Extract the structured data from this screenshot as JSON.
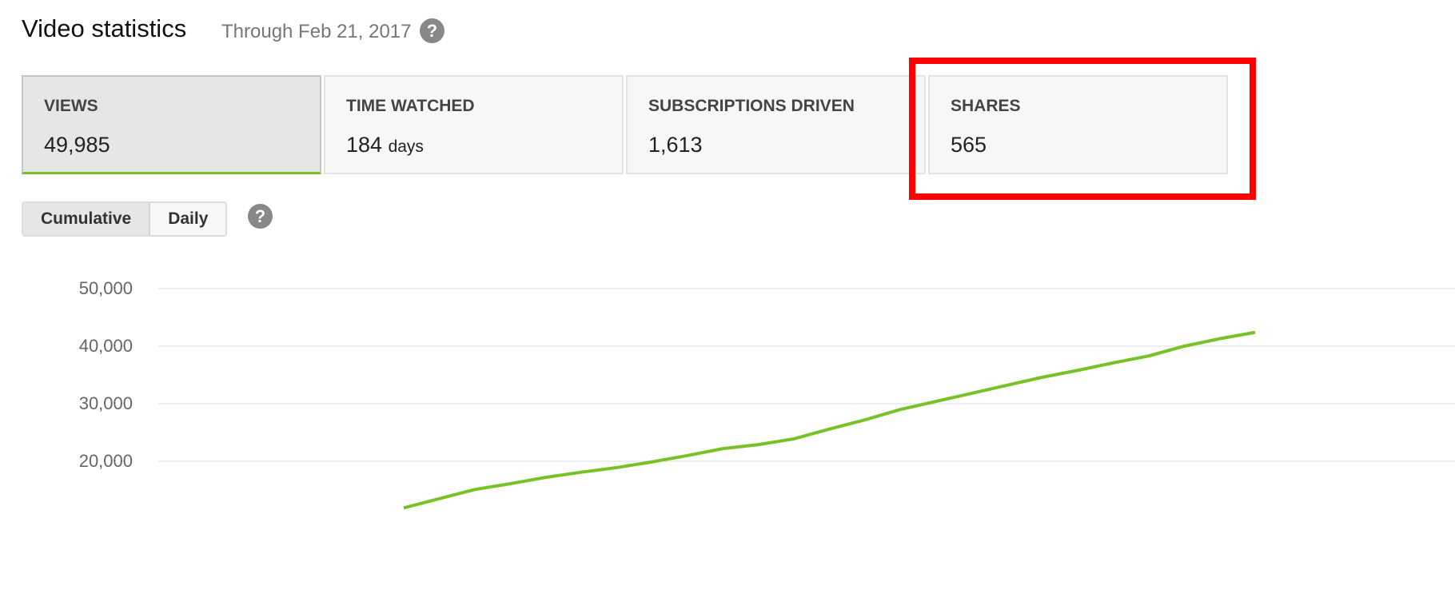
{
  "header": {
    "title": "Video statistics",
    "through": "Through Feb 21, 2017",
    "help_icon": "question-circle-icon"
  },
  "tabs": [
    {
      "label": "VIEWS",
      "value": "49,985",
      "unit": "",
      "active": true
    },
    {
      "label": "TIME WATCHED",
      "value": "184",
      "unit": "days",
      "active": false
    },
    {
      "label": "SUBSCRIPTIONS DRIVEN",
      "value": "1,613",
      "unit": "",
      "active": false
    },
    {
      "label": "SHARES",
      "value": "565",
      "unit": "",
      "active": false,
      "highlighted": true
    }
  ],
  "toggle": {
    "cumulative": "Cumulative",
    "daily": "Daily",
    "selected": "Cumulative"
  },
  "colors": {
    "accent": "#77c226",
    "highlight": "#ff0000"
  },
  "chart_data": {
    "type": "line",
    "ylim": [
      10000,
      50000
    ],
    "yticks": [
      "50,000",
      "40,000",
      "30,000",
      "20,000"
    ],
    "ytick_values": [
      50000,
      40000,
      30000,
      20000
    ],
    "grid": true,
    "series": [
      {
        "color": "#77c226",
        "values": [
          11900,
          13500,
          15100,
          16100,
          17200,
          18100,
          18900,
          19900,
          21000,
          22200,
          22900,
          23900,
          25600,
          27200,
          29000,
          30400,
          31800,
          33200,
          34600,
          35800,
          37100,
          38300,
          40000,
          41300,
          42400
        ]
      }
    ]
  }
}
